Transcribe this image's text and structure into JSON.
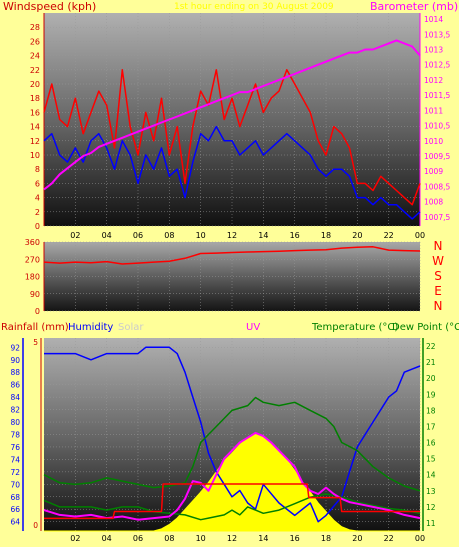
{
  "colors": {
    "page_bg": "#ffff99",
    "wind_gust": "#ff0000",
    "wind_avg": "#0000ff",
    "barometer": "#ff00ff",
    "wind_dir": "#ff0000",
    "rain": "#ff0000",
    "humidity": "#0000ff",
    "solar": "#ffff00",
    "uv": "#ff00ff",
    "temperature": "#008000",
    "dew_point": "#008000",
    "axis_text": "#cc0000",
    "green_text": "#008000",
    "cardinal": "#ff0000"
  },
  "header": {
    "date_title": "1st hour ending on 30 August 2009"
  },
  "chart_data": [
    {
      "id": "wind_baro",
      "type": "line",
      "x_ticks": [
        "02",
        "04",
        "06",
        "08",
        "10",
        "12",
        "14",
        "16",
        "18",
        "20",
        "22",
        "00"
      ],
      "x_range": [
        0,
        24
      ],
      "left_axis": {
        "label": "Windspeed (kph)",
        "ticks": [
          "0",
          "2",
          "4",
          "6",
          "8",
          "10",
          "12",
          "14",
          "16",
          "18",
          "20",
          "22",
          "24",
          "26",
          "28"
        ],
        "range": [
          0,
          30
        ]
      },
      "right_axis": {
        "label": "Barometer (mb)",
        "ticks": [
          "1007,5",
          "1008",
          "1008,5",
          "1009",
          "1009,5",
          "1010",
          "1010,5",
          "1011",
          "1011,5",
          "1012",
          "1012,5",
          "1013",
          "1013,5",
          "1014"
        ],
        "range": [
          1007.2,
          1014.2
        ]
      },
      "series": [
        {
          "key": "gust",
          "axis": "left",
          "x": [
            0,
            0.5,
            1,
            1.5,
            2,
            2.5,
            3,
            3.5,
            4,
            4.5,
            5,
            5.5,
            6,
            6.5,
            7,
            7.5,
            8,
            8.5,
            9,
            9.5,
            10,
            10.5,
            11,
            11.5,
            12,
            12.5,
            13,
            13.5,
            14,
            14.5,
            15,
            15.5,
            16,
            16.5,
            17,
            17.5,
            18,
            18.5,
            19,
            19.5,
            20,
            20.5,
            21,
            21.5,
            22,
            22.5,
            23,
            23.5,
            24
          ],
          "values": [
            16,
            20,
            15,
            14,
            18,
            13,
            16,
            19,
            17,
            11,
            22,
            14,
            10,
            16,
            12,
            18,
            10,
            14,
            6,
            14,
            19,
            17,
            22,
            15,
            18,
            14,
            17,
            20,
            16,
            18,
            19,
            22,
            20,
            18,
            16,
            12,
            10,
            14,
            13,
            11,
            6,
            6,
            5,
            7,
            6,
            5,
            4,
            3,
            6
          ]
        },
        {
          "key": "average",
          "axis": "left",
          "x": [
            0,
            0.5,
            1,
            1.5,
            2,
            2.5,
            3,
            3.5,
            4,
            4.5,
            5,
            5.5,
            6,
            6.5,
            7,
            7.5,
            8,
            8.5,
            9,
            9.5,
            10,
            10.5,
            11,
            11.5,
            12,
            12.5,
            13,
            13.5,
            14,
            14.5,
            15,
            15.5,
            16,
            16.5,
            17,
            17.5,
            18,
            18.5,
            19,
            19.5,
            20,
            20.5,
            21,
            21.5,
            22,
            22.5,
            23,
            23.5,
            24
          ],
          "values": [
            12,
            13,
            10,
            9,
            11,
            9,
            12,
            13,
            11,
            8,
            12,
            10,
            6,
            10,
            8,
            11,
            7,
            8,
            4,
            9,
            13,
            12,
            14,
            12,
            12,
            10,
            11,
            12,
            10,
            11,
            12,
            13,
            12,
            11,
            10,
            8,
            7,
            8,
            8,
            7,
            4,
            4,
            3,
            4,
            3,
            3,
            2,
            1,
            2
          ]
        },
        {
          "key": "barometer",
          "axis": "right",
          "x": [
            0,
            0.5,
            1,
            1.5,
            2,
            2.5,
            3,
            3.5,
            4,
            4.5,
            5,
            5.5,
            6,
            6.5,
            7,
            7.5,
            8,
            8.5,
            9,
            9.5,
            10,
            10.5,
            11,
            11.5,
            12,
            12.5,
            13,
            13.5,
            14,
            14.5,
            15,
            15.5,
            16,
            16.5,
            17,
            17.5,
            18,
            18.5,
            19,
            19.5,
            20,
            20.5,
            21,
            21.5,
            22,
            22.5,
            23,
            23.5,
            24
          ],
          "values": [
            1008.4,
            1008.6,
            1008.9,
            1009.1,
            1009.3,
            1009.5,
            1009.6,
            1009.8,
            1009.9,
            1010,
            1010.1,
            1010.2,
            1010.3,
            1010.4,
            1010.5,
            1010.6,
            1010.7,
            1010.8,
            1010.9,
            1011,
            1011.1,
            1011.2,
            1011.3,
            1011.4,
            1011.5,
            1011.6,
            1011.6,
            1011.7,
            1011.8,
            1011.9,
            1012,
            1012.1,
            1012.2,
            1012.3,
            1012.4,
            1012.5,
            1012.6,
            1012.7,
            1012.8,
            1012.9,
            1012.9,
            1013,
            1013,
            1013.1,
            1013.2,
            1013.3,
            1013.2,
            1013.1,
            1012.8
          ]
        }
      ]
    },
    {
      "id": "wind_direction",
      "type": "line",
      "x_range": [
        0,
        24
      ],
      "left_axis": {
        "ticks": [
          "0",
          "90",
          "180",
          "270",
          "360"
        ],
        "range": [
          0,
          360
        ]
      },
      "cardinal_labels": [
        "N",
        "W",
        "S",
        "E",
        "N"
      ],
      "series": [
        {
          "key": "direction",
          "x": [
            0,
            1,
            2,
            3,
            4,
            5,
            6,
            7,
            8,
            9,
            10,
            11,
            12,
            13,
            14,
            15,
            16,
            17,
            18,
            19,
            20,
            21,
            22,
            23,
            24
          ],
          "values": [
            255,
            250,
            255,
            252,
            258,
            245,
            250,
            255,
            260,
            275,
            300,
            302,
            305,
            308,
            310,
            312,
            315,
            318,
            320,
            328,
            333,
            335,
            318,
            315,
            313
          ]
        }
      ]
    },
    {
      "id": "rain_hum_solar_uv_temp",
      "type": "line",
      "x_ticks": [
        "02",
        "04",
        "06",
        "08",
        "10",
        "12",
        "14",
        "16",
        "18",
        "20",
        "22",
        "00"
      ],
      "x_range": [
        0,
        24
      ],
      "labels": {
        "rainfall": "Rainfall (mm)",
        "humidity": "Humidity",
        "solar": "Solar",
        "uv": "UV",
        "temperature": "Temperature (°C)",
        "dew_point": "Dew Point (°C)"
      },
      "rain_axis": {
        "ticks": [
          "0",
          "5"
        ],
        "range": [
          0,
          5
        ]
      },
      "humidity_axis": {
        "ticks": [
          "64",
          "66",
          "68",
          "70",
          "72",
          "74",
          "76",
          "78",
          "80",
          "82",
          "84",
          "86",
          "88",
          "90",
          "92"
        ],
        "range": [
          62.5,
          93.5
        ]
      },
      "temperature_axis": {
        "ticks": [
          "11",
          "12",
          "13",
          "14",
          "15",
          "16",
          "17",
          "18",
          "19",
          "20",
          "21",
          "22"
        ],
        "range": [
          10.5,
          22.5
        ]
      },
      "series": [
        {
          "key": "humidity",
          "x": [
            0,
            1,
            2,
            3,
            4,
            5,
            6,
            6.5,
            7,
            8,
            8.5,
            9,
            9.5,
            10,
            10.5,
            11,
            11.5,
            12,
            12.5,
            13,
            13.5,
            14,
            15,
            16,
            17,
            17.5,
            18,
            19,
            19.5,
            20,
            21,
            22,
            22.5,
            23,
            23.5,
            24
          ],
          "values": [
            91,
            91,
            91,
            90,
            91,
            91,
            91,
            92,
            92,
            92,
            91,
            88,
            84,
            80,
            75,
            72,
            70,
            68,
            69,
            67,
            66,
            70,
            67,
            65,
            67,
            64,
            65,
            68,
            72,
            76,
            80,
            84,
            85,
            88,
            88.5,
            89
          ]
        },
        {
          "key": "temperature",
          "x": [
            0,
            1,
            2,
            3,
            4,
            5,
            6,
            7,
            8,
            9,
            9.5,
            10,
            10.5,
            11,
            11.5,
            12,
            13,
            13.5,
            14,
            15,
            16,
            17,
            18,
            18.5,
            19,
            20,
            21,
            22,
            23,
            24
          ],
          "values": [
            14,
            13.5,
            13.4,
            13.5,
            13.8,
            13.6,
            13.4,
            13.2,
            13.3,
            13.5,
            14.5,
            16,
            16.5,
            17,
            17.5,
            18,
            18.3,
            18.8,
            18.5,
            18.3,
            18.5,
            18,
            17.5,
            17,
            16,
            15.5,
            14.5,
            13.8,
            13.3,
            13
          ]
        },
        {
          "key": "dew_point",
          "x": [
            0,
            1,
            2,
            3,
            4,
            5,
            6,
            7,
            8,
            9,
            10,
            10.5,
            11,
            11.5,
            12,
            12.5,
            13,
            14,
            15,
            16,
            17,
            18,
            19,
            20,
            21,
            22,
            23,
            24
          ],
          "values": [
            12.4,
            12,
            12,
            12,
            11.8,
            12,
            12,
            11.7,
            11.6,
            11.5,
            11.2,
            11.3,
            11.4,
            11.5,
            11.8,
            11.5,
            12,
            11.6,
            11.8,
            12.2,
            12.6,
            12.8,
            12.6,
            12.3,
            12.1,
            11.9,
            11.8,
            11.6
          ]
        },
        {
          "key": "solar_relative",
          "x": [
            0,
            7,
            7.5,
            8,
            8.5,
            9,
            9.5,
            10,
            10.5,
            11,
            11.5,
            12,
            12.5,
            13,
            13.5,
            14,
            14.5,
            15,
            15.5,
            16,
            16.5,
            17,
            17.5,
            18,
            18.5,
            19,
            19.5,
            20,
            24
          ],
          "values": [
            0,
            0,
            0.02,
            0.06,
            0.12,
            0.2,
            0.28,
            0.36,
            0.45,
            0.55,
            0.65,
            0.72,
            0.8,
            0.86,
            0.9,
            0.88,
            0.82,
            0.75,
            0.66,
            0.56,
            0.45,
            0.36,
            0.26,
            0.18,
            0.1,
            0.04,
            0.01,
            0,
            0
          ]
        },
        {
          "key": "uv",
          "x": [
            0,
            1,
            2,
            3,
            4,
            5,
            6,
            7,
            8,
            8.5,
            9,
            9.5,
            10,
            10.5,
            11,
            11.5,
            12,
            12.5,
            13,
            13.5,
            14,
            14.5,
            15,
            15.5,
            16,
            16.5,
            17,
            17.5,
            18,
            18.5,
            19,
            19.5,
            20,
            21,
            22,
            23,
            24
          ],
          "values": [
            11.8,
            11.5,
            11.4,
            11.5,
            11.3,
            11.4,
            11.2,
            11.3,
            11.4,
            11.8,
            12.5,
            13.6,
            13.5,
            13,
            14,
            15,
            15.5,
            16,
            16.3,
            16.6,
            16.4,
            16,
            15.5,
            15,
            14.5,
            13.5,
            13,
            12.8,
            13.2,
            12.8,
            12.5,
            12.3,
            12.2,
            12,
            11.8,
            11.5,
            11.3
          ]
        },
        {
          "key": "rain_daily",
          "x": [
            0,
            4.4,
            4.5,
            7.5,
            7.6,
            16.8,
            16.9,
            18.9,
            19,
            24
          ],
          "values": [
            0.18,
            0.18,
            0.37,
            0.37,
            1.12,
            1.12,
            0.75,
            0.75,
            0.37,
            0.37
          ]
        }
      ]
    }
  ]
}
